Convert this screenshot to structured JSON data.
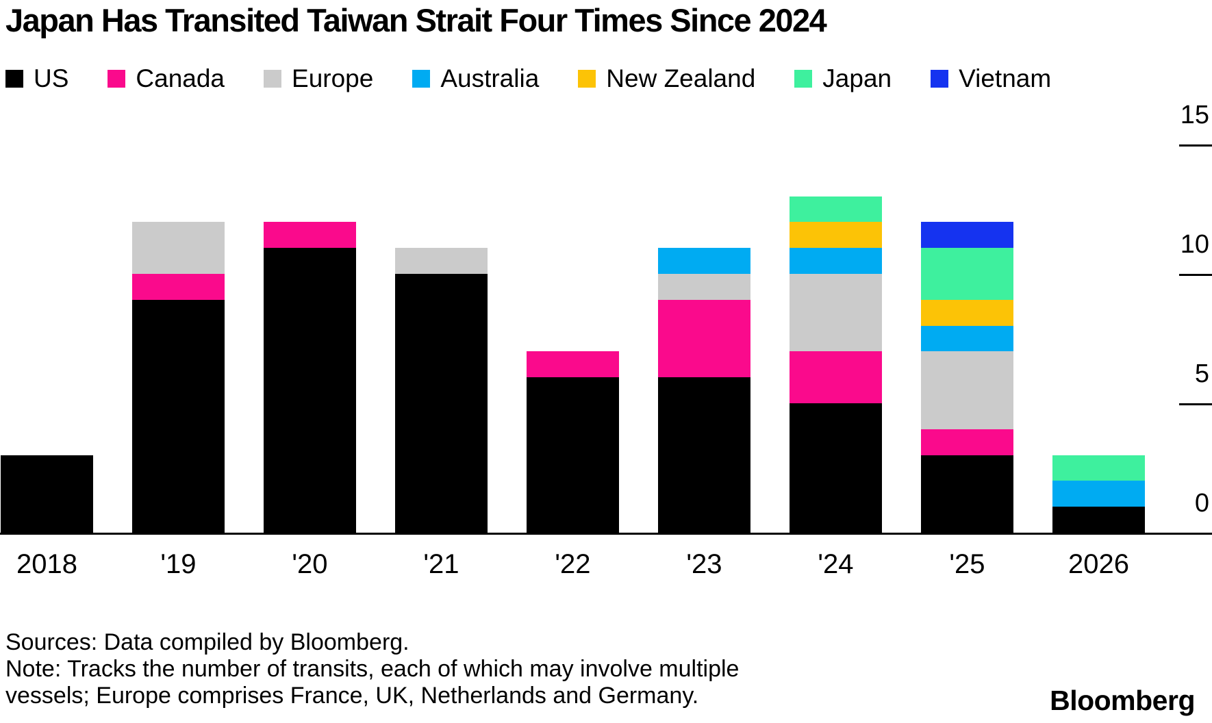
{
  "header": {
    "title": "Japan Has Transited Taiwan Strait Four Times Since 2024"
  },
  "chart_data": {
    "type": "bar",
    "stacked": true,
    "title": "Japan Has Transited Taiwan Strait Four Times Since 2024",
    "categories": [
      "2018",
      "'19",
      "'20",
      "'21",
      "'22",
      "'23",
      "'24",
      "'25",
      "2026"
    ],
    "series": [
      {
        "name": "US",
        "color": "#000000",
        "values": [
          3,
          9,
          11,
          10,
          6,
          6,
          5,
          3,
          1
        ]
      },
      {
        "name": "Canada",
        "color": "#FA0A8C",
        "values": [
          0,
          1,
          1,
          0,
          1,
          3,
          2,
          1,
          0
        ]
      },
      {
        "name": "Europe",
        "color": "#CBCBCB",
        "values": [
          0,
          2,
          0,
          1,
          0,
          1,
          3,
          3,
          0
        ]
      },
      {
        "name": "Australia",
        "color": "#00ABF2",
        "values": [
          0,
          0,
          0,
          0,
          0,
          1,
          1,
          1,
          1
        ]
      },
      {
        "name": "New Zealand",
        "color": "#FCC306",
        "values": [
          0,
          0,
          0,
          0,
          0,
          0,
          1,
          1,
          0
        ]
      },
      {
        "name": "Japan",
        "color": "#3EF09E",
        "values": [
          0,
          0,
          0,
          0,
          0,
          0,
          1,
          2,
          1
        ]
      },
      {
        "name": "Vietnam",
        "color": "#1533F0",
        "values": [
          0,
          0,
          0,
          0,
          0,
          0,
          0,
          1,
          0
        ]
      }
    ],
    "totals": [
      3,
      12,
      12,
      11,
      7,
      11,
      13,
      12,
      3
    ],
    "xlabel": "",
    "ylabel": "",
    "yticks": [
      0,
      5,
      10,
      15
    ],
    "ylim": [
      0,
      16.6
    ],
    "legend_position": "top",
    "grid": false,
    "axis_side": "right"
  },
  "footer": {
    "sources": "Sources: Data compiled by Bloomberg.",
    "note_line1": "Note: Tracks the number of transits, each of which may involve multiple",
    "note_line2": "vessels; Europe comprises France, UK, Netherlands and Germany.",
    "logo": "Bloomberg"
  }
}
